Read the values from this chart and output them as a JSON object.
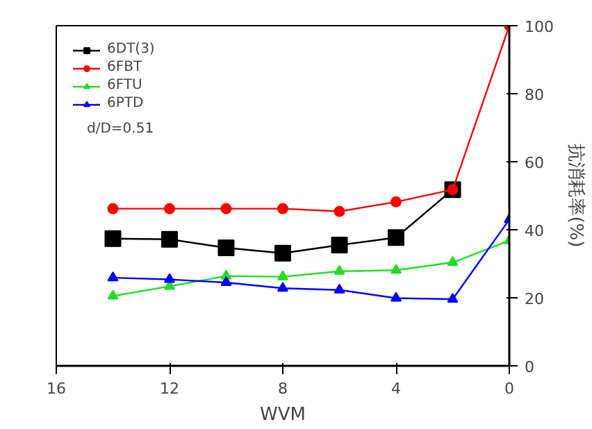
{
  "chart_data": {
    "type": "line",
    "xlabel": "WVM",
    "ylabel": "抗消耗率(%)",
    "xlim": [
      16,
      0
    ],
    "xticks": [
      16,
      12,
      8,
      4,
      0
    ],
    "ylim": [
      0,
      100
    ],
    "yticks": [
      0,
      20,
      40,
      60,
      80,
      100
    ],
    "grid": false,
    "legend": "top left",
    "line_style": "solid",
    "annotations": [
      "d/D=0.51"
    ],
    "series": [
      {
        "name": "6DT(3)",
        "color": "#000000",
        "marker": "square",
        "x": [
          14,
          12,
          10,
          8,
          6,
          4,
          2
        ],
        "values": [
          37.4,
          37.2,
          34.7,
          33.1,
          35.5,
          37.7,
          51.8
        ]
      },
      {
        "name": "6FBT",
        "color": "#ff0000",
        "marker": "circle",
        "x": [
          14,
          12,
          10,
          8,
          6,
          4,
          2,
          0
        ],
        "values": [
          46.2,
          46.2,
          46.2,
          46.2,
          45.4,
          48.2,
          51.8,
          100
        ]
      },
      {
        "name": "6FTU",
        "color": "#22dd22",
        "marker": "triangle",
        "x": [
          14,
          12,
          10,
          8,
          6,
          4,
          2,
          0
        ],
        "values": [
          20.5,
          23.4,
          26.4,
          26.2,
          27.8,
          28.1,
          30.4,
          36.8
        ]
      },
      {
        "name": "6PTD",
        "color": "#0000ff",
        "marker": "triangle",
        "x": [
          14,
          12,
          10,
          8,
          6,
          4,
          2,
          0
        ],
        "values": [
          25.9,
          25.4,
          24.5,
          22.8,
          22.3,
          19.9,
          19.6,
          43
        ]
      }
    ]
  }
}
